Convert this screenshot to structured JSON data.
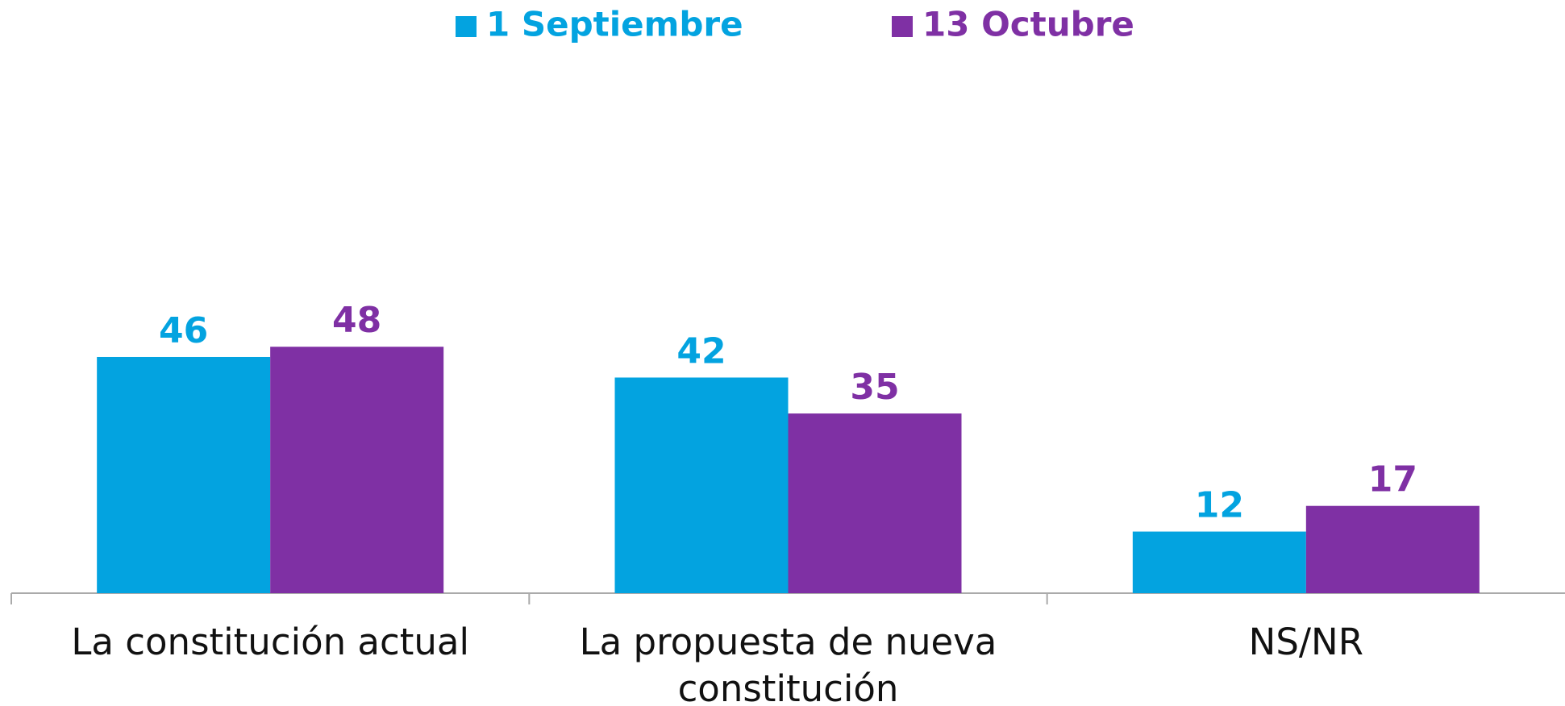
{
  "chart_data": {
    "type": "bar",
    "categories": [
      "La constitución actual",
      "La propuesta de nueva constitución",
      "NS/NR"
    ],
    "series": [
      {
        "name": "1 Septiembre",
        "color": "#03a3e0",
        "values": [
          46,
          42,
          12
        ]
      },
      {
        "name": "13 Octubre",
        "color": "#7f30a4",
        "values": [
          48,
          35,
          17
        ]
      }
    ],
    "ylim": [
      0,
      100
    ]
  }
}
